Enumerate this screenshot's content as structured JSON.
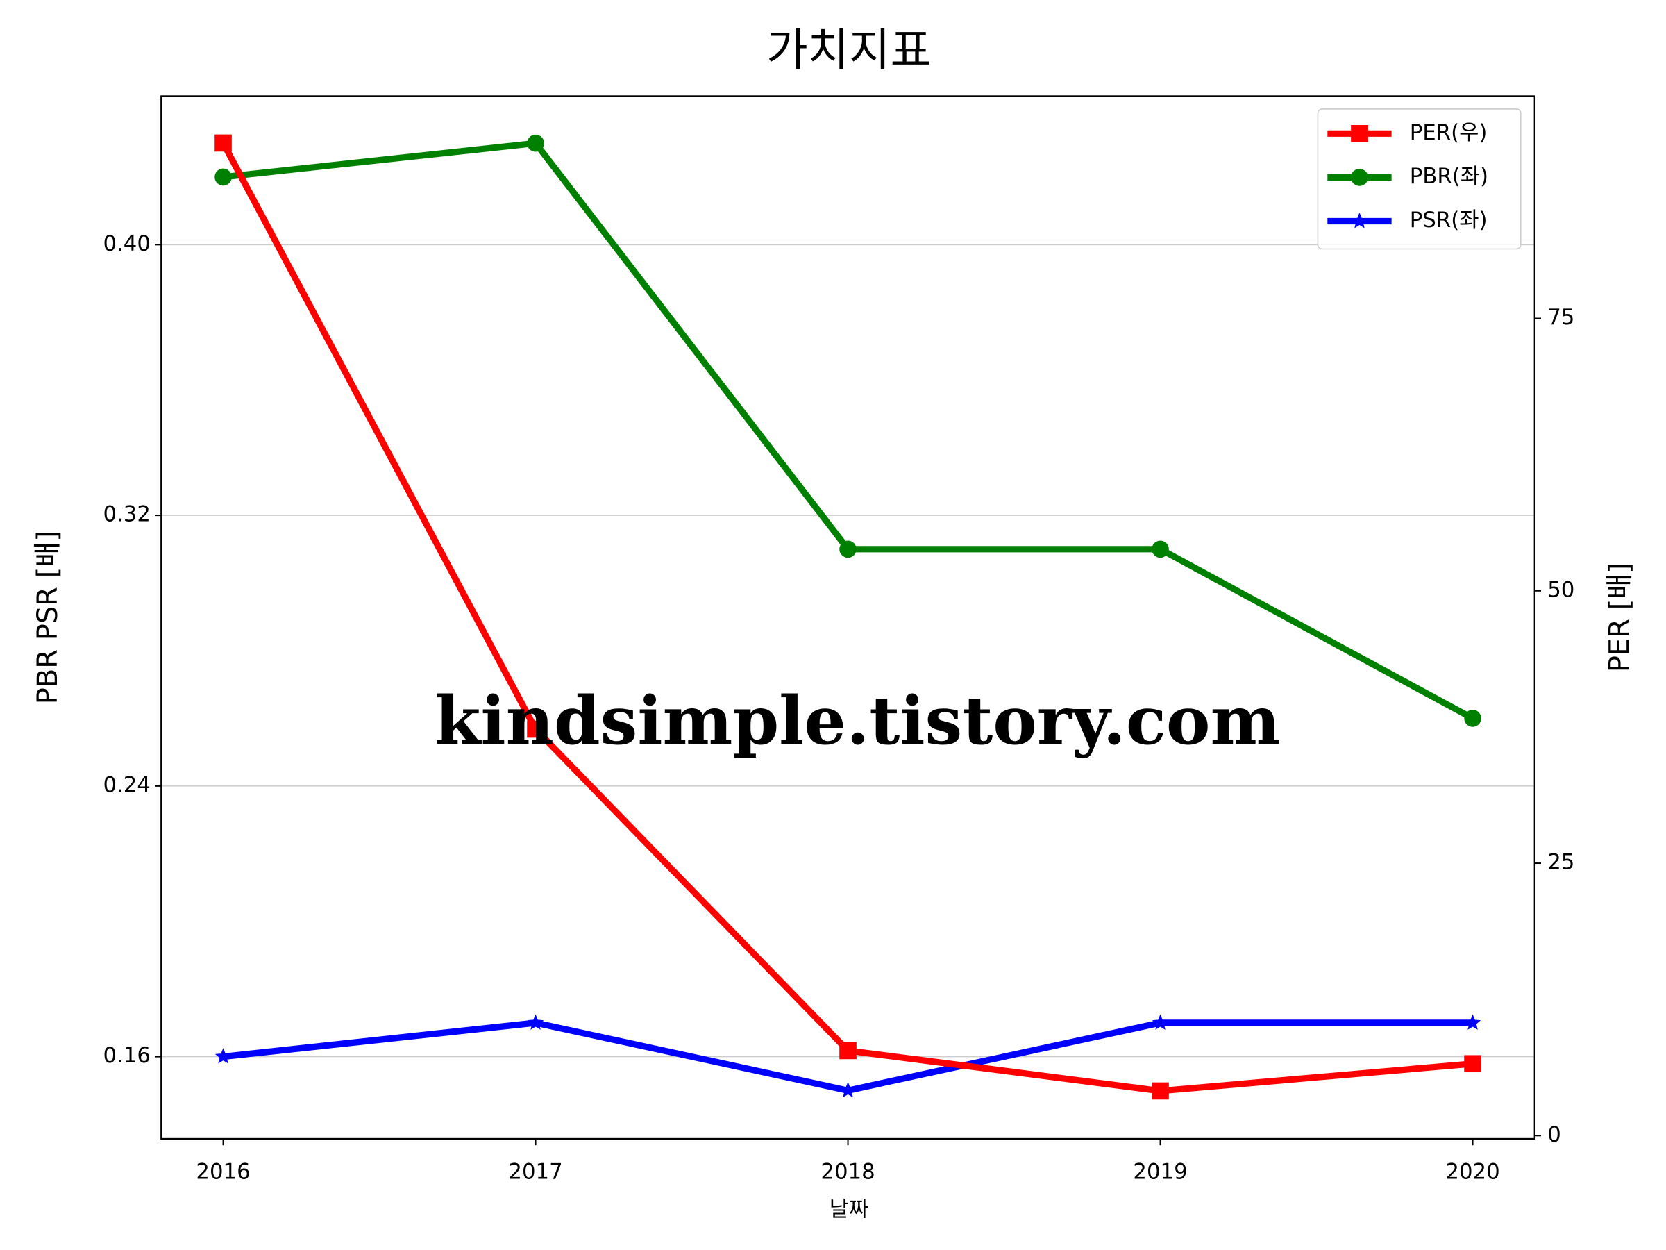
{
  "chart_data": {
    "type": "line",
    "title": "가치지표",
    "xlabel": "날짜",
    "ylabel": "PBR PSR [배]",
    "y2label": "PER [배]",
    "annotation": "kindsimple.tistory.com",
    "categories": [
      "2016",
      "2017",
      "2018",
      "2019",
      "2020"
    ],
    "series": [
      {
        "name": "PER(우)",
        "color": "#ff0000",
        "marker": "square",
        "axis": "y2",
        "values": [
          91.1,
          37.3,
          7.8,
          4.1,
          6.6
        ]
      },
      {
        "name": "PBR(좌)",
        "color": "#008000",
        "marker": "circle",
        "values": [
          0.42,
          0.43,
          0.31,
          0.31,
          0.26
        ]
      },
      {
        "name": "PSR(좌)",
        "color": "#0000ff",
        "marker": "star",
        "values": [
          0.16,
          0.17,
          0.15,
          0.17,
          0.17
        ]
      }
    ],
    "ylim": [
      0.1357,
      0.4439
    ],
    "yticks": [
      0.16,
      0.24,
      0.32,
      {
        "value": 0.4,
        "label": "0.40"
      }
    ],
    "y2lim": [
      -0.3,
      95.4
    ],
    "y2ticks": [
      0,
      25,
      50,
      75
    ],
    "grid": true,
    "legend": "upper right",
    "ylabel_color": "#008000",
    "y2label_color": "#ff0000",
    "watermark_color": "#e0a8ea"
  }
}
